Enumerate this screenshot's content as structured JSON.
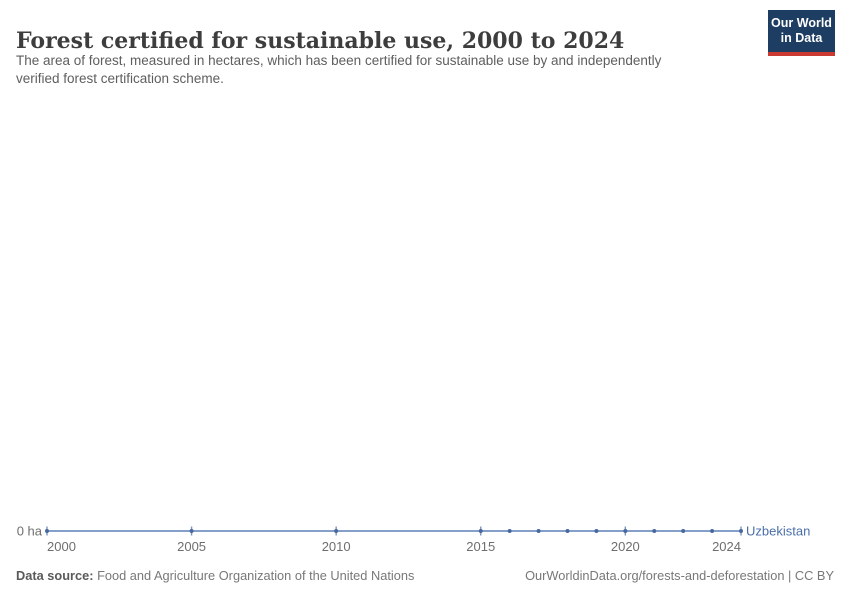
{
  "header": {
    "title": "Forest certified for sustainable use, 2000 to 2024",
    "subtitle_line1": "The area of forest, measured in hectares, which has been certified for sustainable use by and independently",
    "subtitle_line2": "verified forest certification scheme.",
    "logo": {
      "line1": "Our World",
      "line2": "in Data"
    }
  },
  "footer": {
    "datasource_label": "Data source:",
    "datasource_value": " Food and Agriculture Organization of the United Nations",
    "link_text": "OurWorldinData.org/forests-and-deforestation | CC BY"
  },
  "chart_data": {
    "type": "line",
    "title": "Forest certified for sustainable use, 2000 to 2024",
    "unit": "ha",
    "series": [
      {
        "name": "Uzbekistan",
        "x": [
          2000,
          2005,
          2010,
          2015,
          2016,
          2017,
          2018,
          2019,
          2020,
          2021,
          2022,
          2023,
          2024
        ],
        "values": [
          0,
          0,
          0,
          0,
          0,
          0,
          0,
          0,
          0,
          0,
          0,
          0,
          0
        ]
      }
    ],
    "x_ticks": [
      2000,
      2005,
      2010,
      2015,
      2020,
      2024
    ],
    "xlim": [
      2000,
      2024
    ],
    "ylim": [
      0,
      0
    ],
    "y_zero_label": "0 ha",
    "grid": false,
    "legend": "inline-end-label",
    "colors": {
      "line": "#5b80b9",
      "marker": "#47699f",
      "axis_tick": "#7d94ba",
      "entity_label": "#4a6fa8",
      "tick_text": "#6e6e6e"
    }
  }
}
